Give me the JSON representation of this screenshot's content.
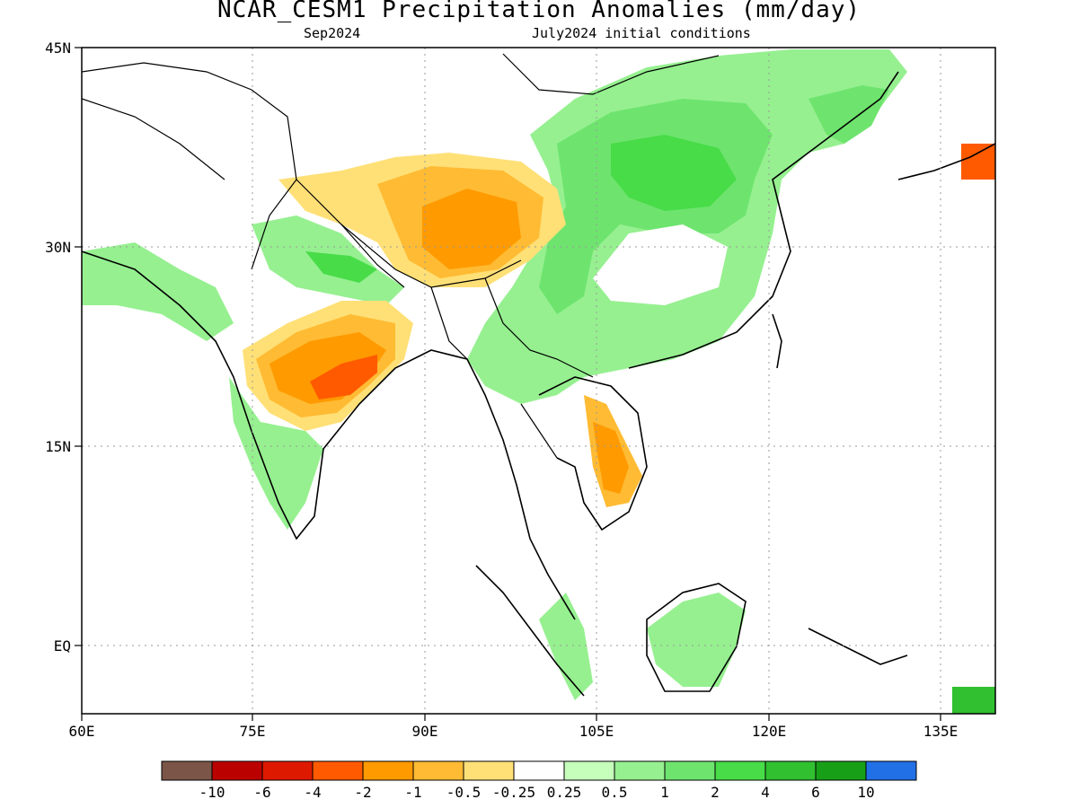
{
  "title": "NCAR_CESM1 Precipitation Anomalies (mm/day)",
  "subtitle_left": "Sep2024",
  "subtitle_right": "July2024 initial conditions",
  "lon_labels": [
    "60E",
    "75E",
    "90E",
    "105E",
    "120E",
    "135E"
  ],
  "lat_labels": [
    "45N",
    "30N",
    "15N",
    "EQ"
  ],
  "colorbar": {
    "colors": [
      "#7a5548",
      "#bb0000",
      "#dd1a00",
      "#ff5a00",
      "#ff9a00",
      "#ffbb33",
      "#ffe077",
      "#ffffff",
      "#c6ffbb",
      "#96f090",
      "#6ee46e",
      "#48dc48",
      "#30c030",
      "#17a017",
      "#2270e6"
    ],
    "labels": [
      "-10",
      "-6",
      "-4",
      "-2",
      "-1",
      "-0.5",
      "-0.25",
      "0.25",
      "0.5",
      "1",
      "2",
      "4",
      "6",
      "10"
    ]
  },
  "colors": {
    "dry_strong": "#ff5a00",
    "dry_mod": "#ff9a00",
    "dry_light": "#ffbb33",
    "dry_weak": "#ffe077",
    "wet_weak": "#96f090",
    "wet_light": "#6ee46e",
    "wet_mod": "#48dc48",
    "wet_strong": "#30c030"
  }
}
